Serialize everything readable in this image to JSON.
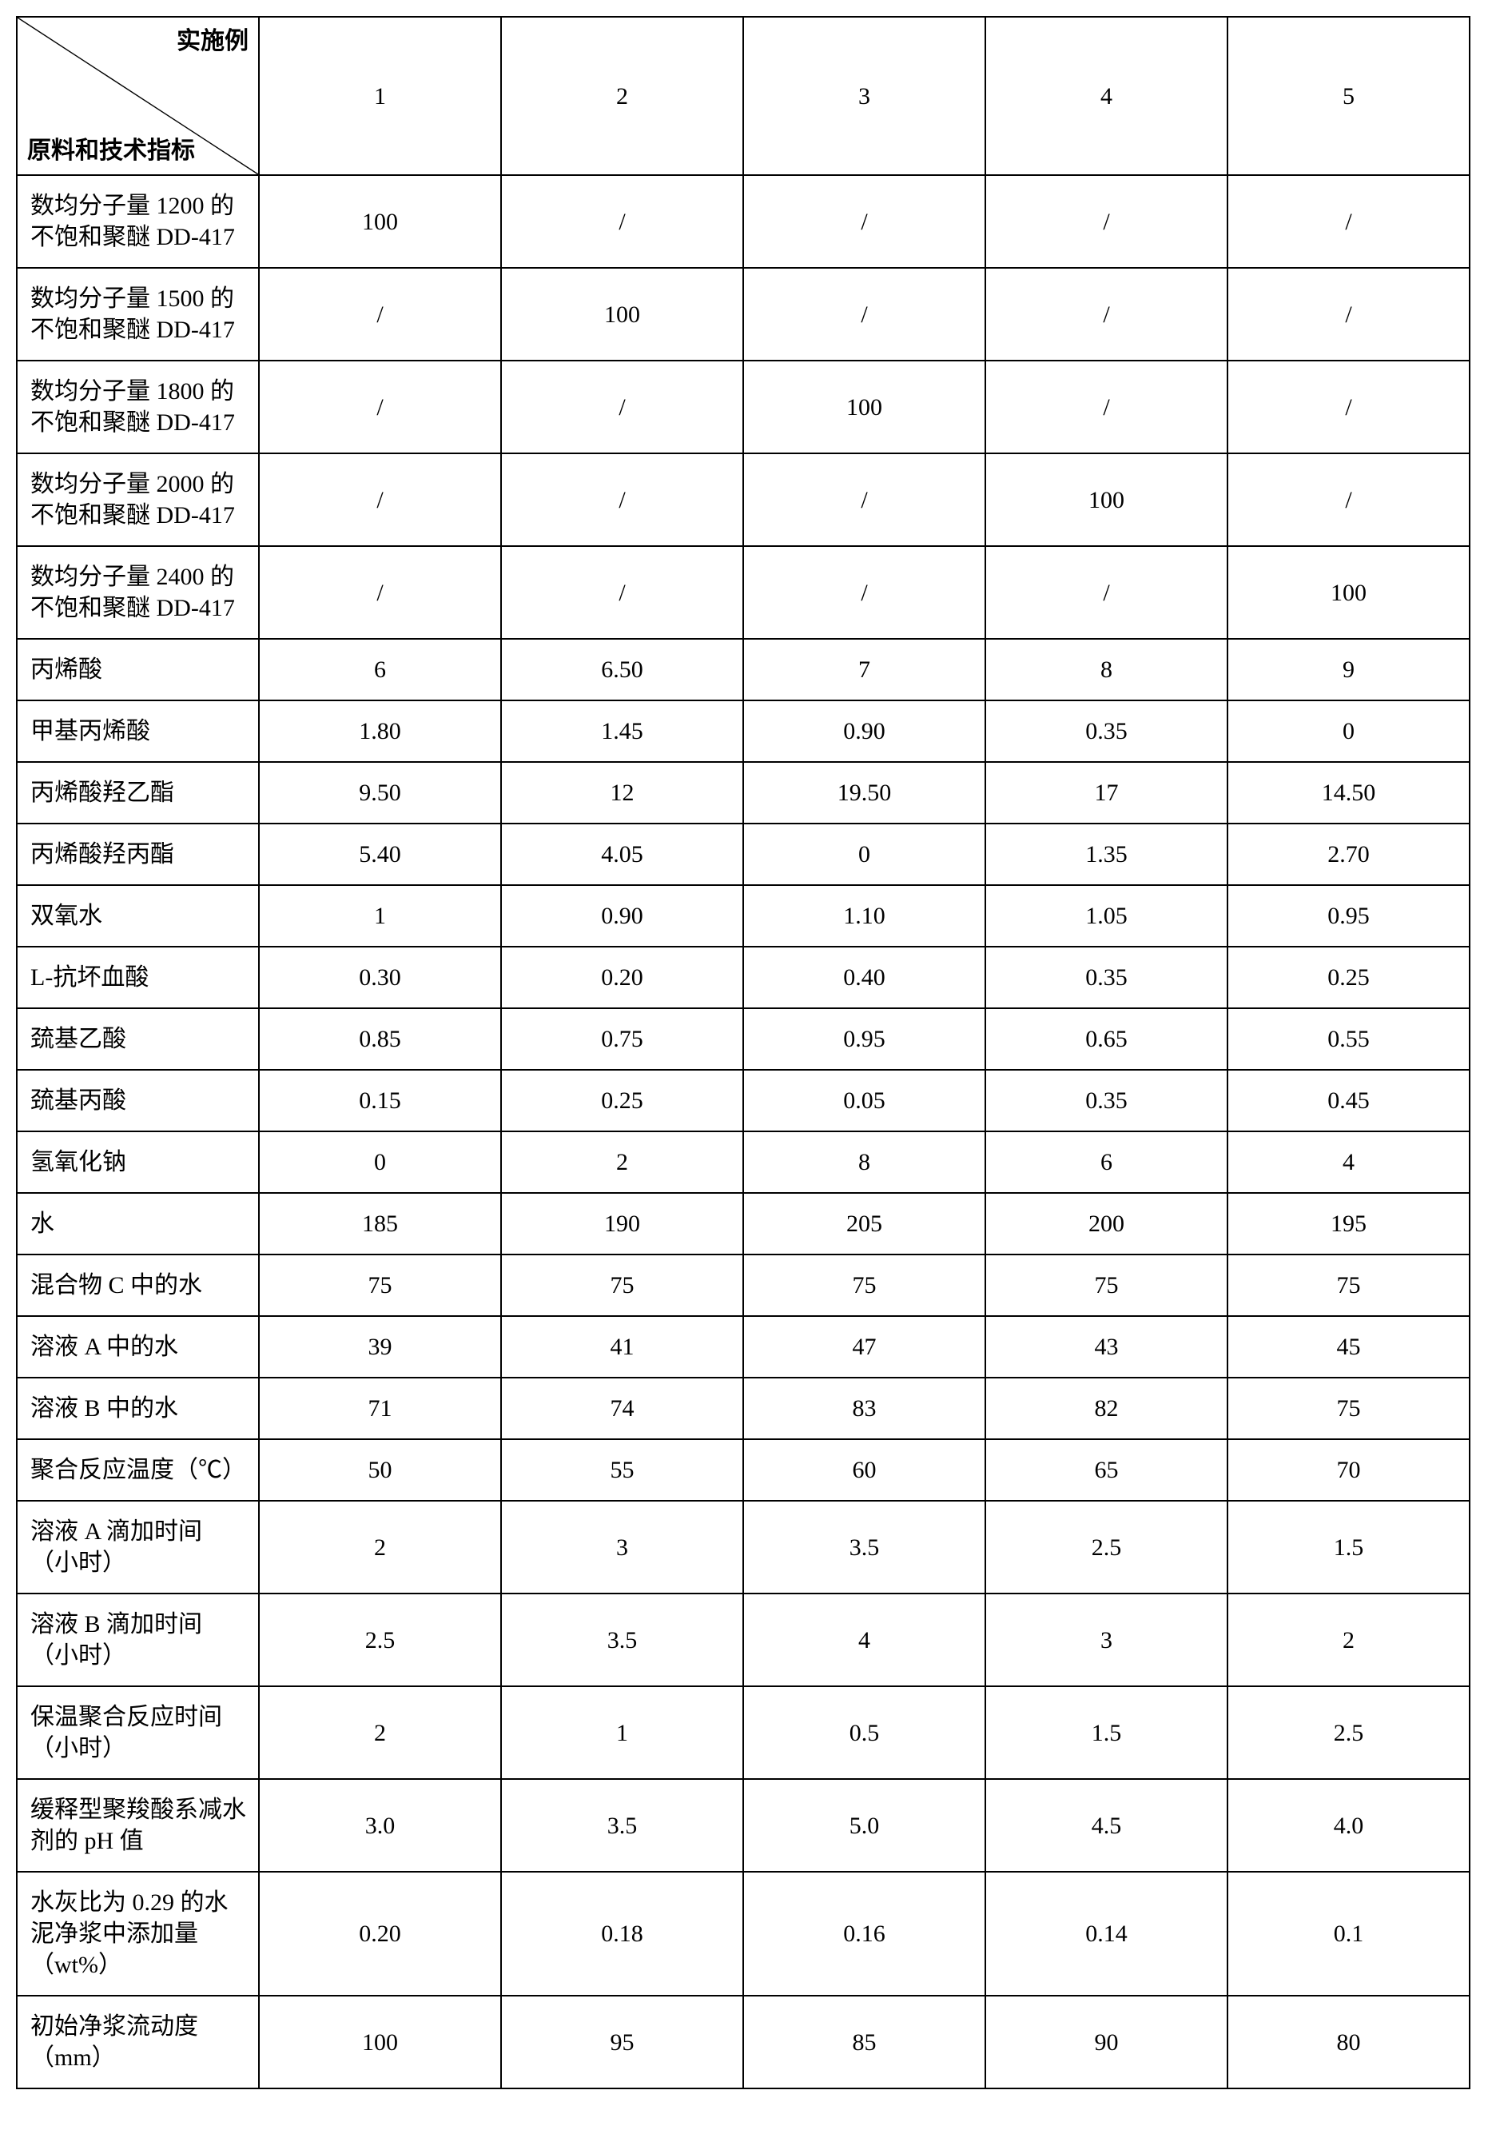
{
  "table": {
    "header": {
      "topLabel": "实施例",
      "bottomLabel": "原料和技术指标",
      "columns": [
        "1",
        "2",
        "3",
        "4",
        "5"
      ]
    },
    "rows": [
      {
        "label": "数均分子量 1200 的不饱和聚醚 DD-417",
        "cells": [
          "100",
          "/",
          "/",
          "/",
          "/"
        ]
      },
      {
        "label": "数均分子量 1500 的不饱和聚醚 DD-417",
        "cells": [
          "/",
          "100",
          "/",
          "/",
          "/"
        ]
      },
      {
        "label": "数均分子量 1800 的不饱和聚醚 DD-417",
        "cells": [
          "/",
          "/",
          "100",
          "/",
          "/"
        ]
      },
      {
        "label": "数均分子量 2000 的不饱和聚醚 DD-417",
        "cells": [
          "/",
          "/",
          "/",
          "100",
          "/"
        ]
      },
      {
        "label": "数均分子量 2400 的不饱和聚醚 DD-417",
        "cells": [
          "/",
          "/",
          "/",
          "/",
          "100"
        ]
      },
      {
        "label": "丙烯酸",
        "cells": [
          "6",
          "6.50",
          "7",
          "8",
          "9"
        ]
      },
      {
        "label": "甲基丙烯酸",
        "cells": [
          "1.80",
          "1.45",
          "0.90",
          "0.35",
          "0"
        ]
      },
      {
        "label": "丙烯酸羟乙酯",
        "cells": [
          "9.50",
          "12",
          "19.50",
          "17",
          "14.50"
        ]
      },
      {
        "label": "丙烯酸羟丙酯",
        "cells": [
          "5.40",
          "4.05",
          "0",
          "1.35",
          "2.70"
        ]
      },
      {
        "label": "双氧水",
        "cells": [
          "1",
          "0.90",
          "1.10",
          "1.05",
          "0.95"
        ]
      },
      {
        "label": "L-抗坏血酸",
        "cells": [
          "0.30",
          "0.20",
          "0.40",
          "0.35",
          "0.25"
        ]
      },
      {
        "label": "巯基乙酸",
        "cells": [
          "0.85",
          "0.75",
          "0.95",
          "0.65",
          "0.55"
        ]
      },
      {
        "label": "巯基丙酸",
        "cells": [
          "0.15",
          "0.25",
          "0.05",
          "0.35",
          "0.45"
        ]
      },
      {
        "label": "氢氧化钠",
        "cells": [
          "0",
          "2",
          "8",
          "6",
          "4"
        ]
      },
      {
        "label": "水",
        "cells": [
          "185",
          "190",
          "205",
          "200",
          "195"
        ]
      },
      {
        "label": "混合物 C 中的水",
        "cells": [
          "75",
          "75",
          "75",
          "75",
          "75"
        ]
      },
      {
        "label": "溶液 A 中的水",
        "cells": [
          "39",
          "41",
          "47",
          "43",
          "45"
        ]
      },
      {
        "label": "溶液 B 中的水",
        "cells": [
          "71",
          "74",
          "83",
          "82",
          "75"
        ]
      },
      {
        "label": "聚合反应温度（℃）",
        "cells": [
          "50",
          "55",
          "60",
          "65",
          "70"
        ]
      },
      {
        "label": "溶液 A 滴加时间（小时）",
        "cells": [
          "2",
          "3",
          "3.5",
          "2.5",
          "1.5"
        ]
      },
      {
        "label": "溶液 B 滴加时间（小时）",
        "cells": [
          "2.5",
          "3.5",
          "4",
          "3",
          "2"
        ]
      },
      {
        "label": "保温聚合反应时间（小时）",
        "cells": [
          "2",
          "1",
          "0.5",
          "1.5",
          "2.5"
        ]
      },
      {
        "label": "缓释型聚羧酸系减水剂的 pH 值",
        "cells": [
          "3.0",
          "3.5",
          "5.0",
          "4.5",
          "4.0"
        ]
      },
      {
        "label": "水灰比为 0.29 的水泥净浆中添加量（wt%）",
        "cells": [
          "0.20",
          "0.18",
          "0.16",
          "0.14",
          "0.1"
        ]
      },
      {
        "label": "初始净浆流动度（mm）",
        "cells": [
          "100",
          "95",
          "85",
          "90",
          "80"
        ]
      }
    ],
    "style": {
      "borderColor": "#000000",
      "backgroundColor": "#ffffff",
      "textColor": "#000000",
      "fontSize": 30,
      "headerFontSize": 30,
      "labelColWidthPct": 44,
      "valueColWidthPct": 11.2,
      "rowHeightPx": 70,
      "headerHeightPx": 160
    }
  }
}
